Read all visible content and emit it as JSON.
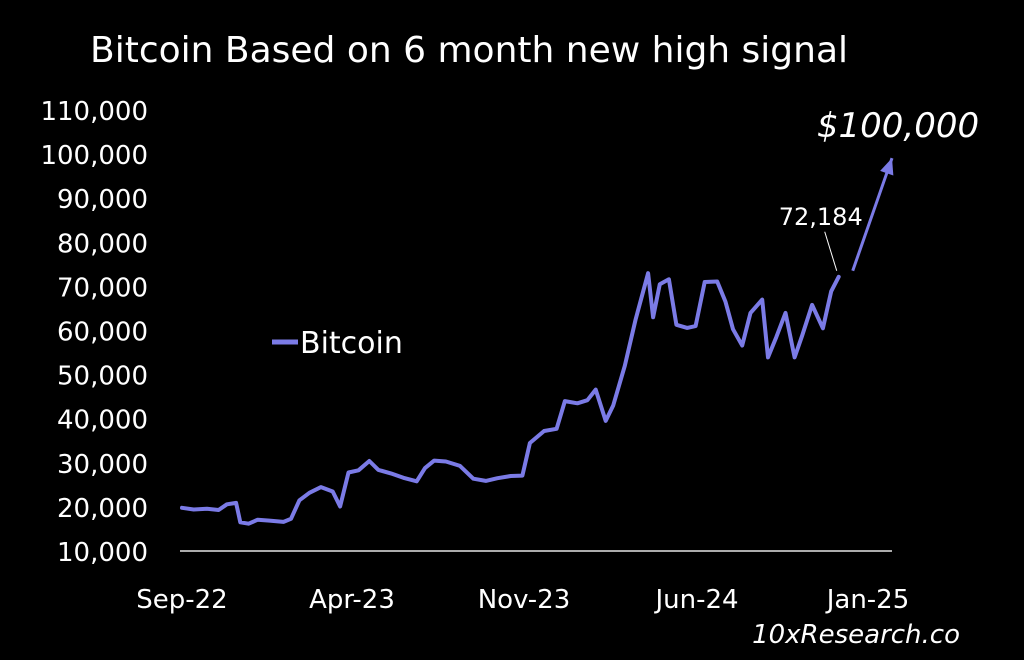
{
  "chart_data": {
    "type": "line",
    "title": "Bitcoin Based on 6 month new high signal",
    "legend": {
      "label": "Bitcoin",
      "placement": "left-middle"
    },
    "x_ticks": [
      "Sep-22",
      "Apr-23",
      "Nov-23",
      "Jun-24",
      "Jan-25"
    ],
    "y_ticks": [
      "10,000",
      "20,000",
      "30,000",
      "40,000",
      "50,000",
      "60,000",
      "70,000",
      "80,000",
      "90,000",
      "100,000",
      "110,000"
    ],
    "ylim": [
      10000,
      110000
    ],
    "xlim": [
      "2022-09-01",
      "2025-01-01"
    ],
    "grid": false,
    "series": [
      {
        "name": "Bitcoin",
        "color": "#7b7be6",
        "points": [
          [
            "2022-09-01",
            19800
          ],
          [
            "2022-09-15",
            19400
          ],
          [
            "2022-10-01",
            19600
          ],
          [
            "2022-10-15",
            19300
          ],
          [
            "2022-10-25",
            20600
          ],
          [
            "2022-11-05",
            20900
          ],
          [
            "2022-11-10",
            16500
          ],
          [
            "2022-11-20",
            16200
          ],
          [
            "2022-12-01",
            17100
          ],
          [
            "2022-12-15",
            16900
          ],
          [
            "2023-01-01",
            16600
          ],
          [
            "2023-01-10",
            17300
          ],
          [
            "2023-01-20",
            21500
          ],
          [
            "2023-02-01",
            23200
          ],
          [
            "2023-02-15",
            24500
          ],
          [
            "2023-03-01",
            23500
          ],
          [
            "2023-03-10",
            20100
          ],
          [
            "2023-03-20",
            27800
          ],
          [
            "2023-04-01",
            28300
          ],
          [
            "2023-04-14",
            30400
          ],
          [
            "2023-04-25",
            28400
          ],
          [
            "2023-05-10",
            27600
          ],
          [
            "2023-05-25",
            26600
          ],
          [
            "2023-06-10",
            25800
          ],
          [
            "2023-06-20",
            28800
          ],
          [
            "2023-07-01",
            30500
          ],
          [
            "2023-07-15",
            30300
          ],
          [
            "2023-08-01",
            29300
          ],
          [
            "2023-08-17",
            26400
          ],
          [
            "2023-09-01",
            25900
          ],
          [
            "2023-09-15",
            26500
          ],
          [
            "2023-10-01",
            27000
          ],
          [
            "2023-10-15",
            27100
          ],
          [
            "2023-10-24",
            34500
          ],
          [
            "2023-11-10",
            37200
          ],
          [
            "2023-11-25",
            37700
          ],
          [
            "2023-12-05",
            44000
          ],
          [
            "2023-12-20",
            43500
          ],
          [
            "2024-01-01",
            44200
          ],
          [
            "2024-01-11",
            46600
          ],
          [
            "2024-01-23",
            39500
          ],
          [
            "2024-02-01",
            43000
          ],
          [
            "2024-02-15",
            52000
          ],
          [
            "2024-02-28",
            62500
          ],
          [
            "2024-03-14",
            73000
          ],
          [
            "2024-03-20",
            63000
          ],
          [
            "2024-03-28",
            70500
          ],
          [
            "2024-04-08",
            71600
          ],
          [
            "2024-04-17",
            61300
          ],
          [
            "2024-04-30",
            60600
          ],
          [
            "2024-05-10",
            61000
          ],
          [
            "2024-05-21",
            71000
          ],
          [
            "2024-06-05",
            71100
          ],
          [
            "2024-06-15",
            66500
          ],
          [
            "2024-06-24",
            60300
          ],
          [
            "2024-07-05",
            56600
          ],
          [
            "2024-07-15",
            64000
          ],
          [
            "2024-07-29",
            67000
          ],
          [
            "2024-08-05",
            53900
          ],
          [
            "2024-08-15",
            58500
          ],
          [
            "2024-08-26",
            64000
          ],
          [
            "2024-09-06",
            53900
          ],
          [
            "2024-09-15",
            58800
          ],
          [
            "2024-09-27",
            65800
          ],
          [
            "2024-10-10",
            60500
          ],
          [
            "2024-10-20",
            68900
          ],
          [
            "2024-10-29",
            72184
          ]
        ]
      }
    ],
    "annotations": [
      {
        "text": "72,184",
        "x": "2024-10-29",
        "y": 72184
      },
      {
        "text": "$100,000",
        "x": "2024-12-20",
        "y": 100000,
        "color": "#7b7be6"
      }
    ],
    "watermark": "10xResearch.co"
  }
}
